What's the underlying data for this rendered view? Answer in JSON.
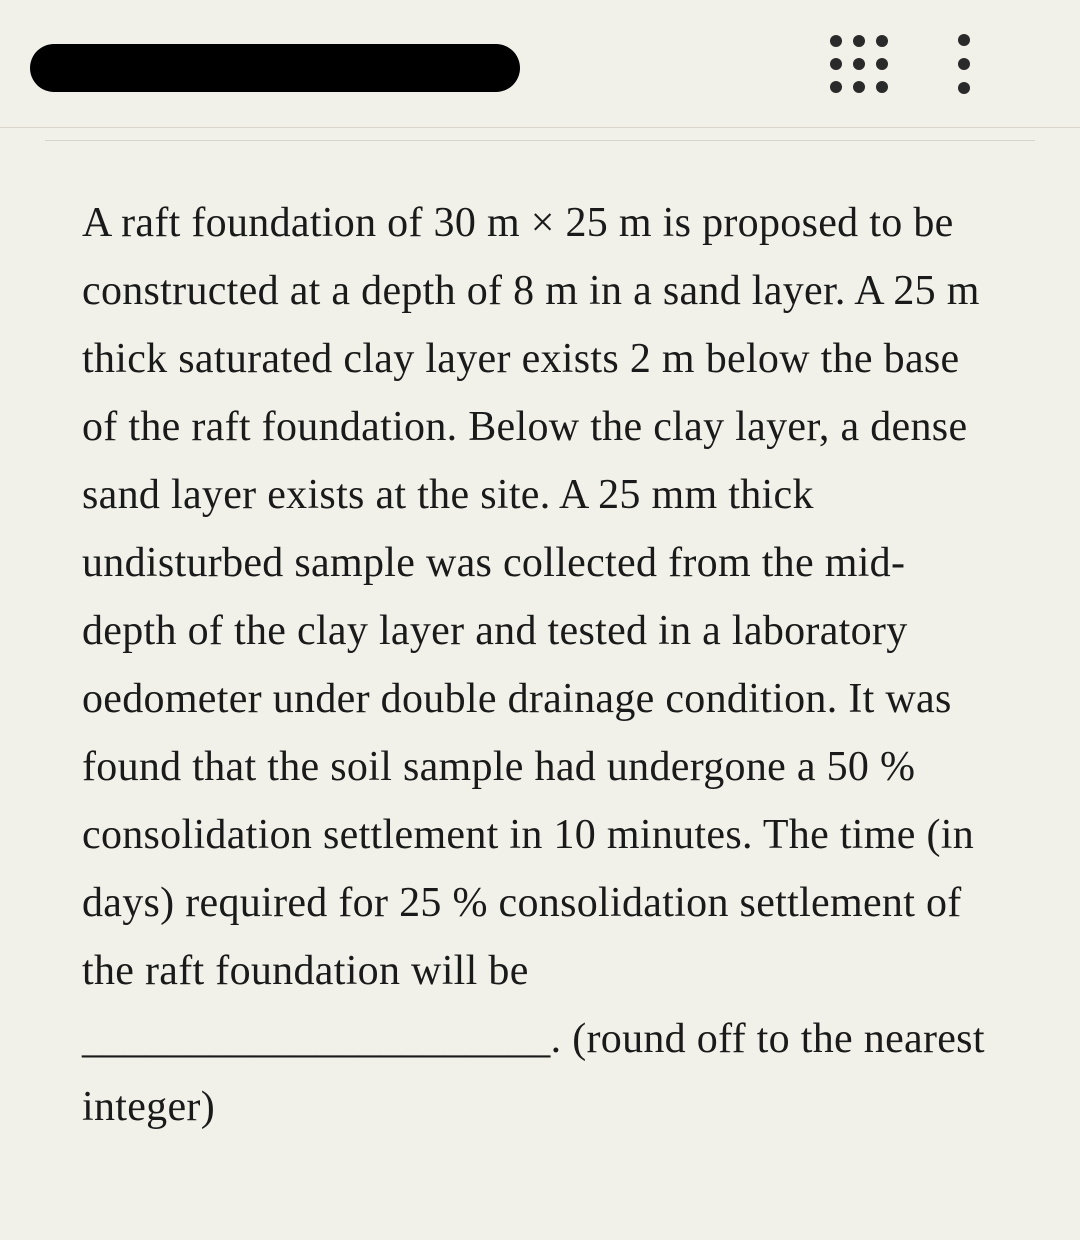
{
  "page": {
    "background_color": "#f2f1e9",
    "text_color": "#1a1a1a",
    "divider_color": "#d8d6cc",
    "icon_color": "#2a2a2a"
  },
  "header": {
    "redacted_title_width": 490,
    "redacted_title_height": 48
  },
  "question": {
    "text": "A raft foundation of 30 m × 25 m is proposed to be constructed at a depth of 8 m in a sand layer. A 25 m thick saturated clay layer exists 2 m below the base of the raft foundation. Below the clay layer, a dense sand layer exists at the site. A 25 mm thick undisturbed sample was collected from the mid-depth of the clay layer and tested in a laboratory oedometer under double drainage condition. It was found that the soil sample had undergone a 50 % consolidation settlement in 10 minutes. The time (in days) required for 25 % consolidation settlement of the raft foundation will be ______________________. (round off to the nearest integer)",
    "font_size": 42,
    "line_height": 1.62
  }
}
